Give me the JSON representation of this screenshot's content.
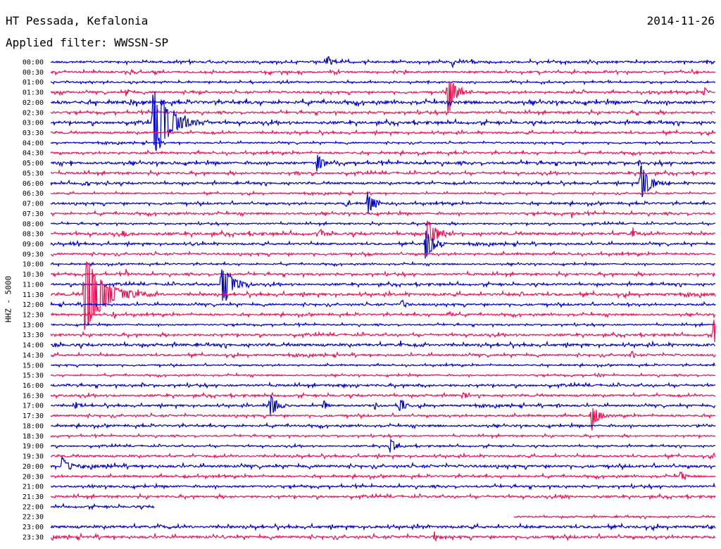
{
  "header": {
    "station": "HT Pessada, Kefalonia",
    "date": "2014-11-26",
    "filter": "Applied filter: WWSSN-SP"
  },
  "colors": {
    "even": "#0000cc",
    "odd": "#ee1155"
  },
  "chart_data": {
    "type": "line",
    "ylabel": "HHZ - 5000",
    "x_range_minutes": [
      0,
      30
    ],
    "rows": [
      {
        "label": "00:00",
        "noise": 2,
        "events": [
          {
            "at": 12.5,
            "amp": 10,
            "dur": 0.3
          },
          {
            "at": 18.1,
            "amp": 7,
            "dur": 0.2
          },
          {
            "at": 19.0,
            "amp": 5,
            "dur": 0.2
          },
          {
            "at": 24.2,
            "amp": 3,
            "dur": 0.2
          }
        ]
      },
      {
        "label": "00:30",
        "noise": 2,
        "events": [
          {
            "at": 15.5,
            "amp": 3,
            "dur": 0.2
          },
          {
            "at": 25.0,
            "amp": 3,
            "dur": 0.2
          }
        ]
      },
      {
        "label": "01:00",
        "noise": 1.5,
        "events": []
      },
      {
        "label": "01:30",
        "noise": 2,
        "events": [
          {
            "at": 3.4,
            "amp": 8,
            "dur": 0.2
          },
          {
            "at": 6.4,
            "amp": 3,
            "dur": 0.2
          },
          {
            "at": 17.9,
            "amp": 40,
            "dur": 0.5
          },
          {
            "at": 24.0,
            "amp": 6,
            "dur": 0.2
          },
          {
            "at": 27.0,
            "amp": 3,
            "dur": 0.2
          },
          {
            "at": 29.5,
            "amp": 10,
            "dur": 0.2
          }
        ]
      },
      {
        "label": "02:00",
        "noise": 3,
        "events": [
          {
            "at": 3.5,
            "amp": 6,
            "dur": 0.3
          }
        ]
      },
      {
        "label": "02:30",
        "noise": 2,
        "events": [
          {
            "at": 26.5,
            "amp": 4,
            "dur": 0.2
          }
        ]
      },
      {
        "label": "03:00",
        "noise": 2.5,
        "events": [
          {
            "at": 4.6,
            "amp": 60,
            "dur": 1.2
          }
        ]
      },
      {
        "label": "03:30",
        "noise": 2,
        "events": []
      },
      {
        "label": "04:00",
        "noise": 1.5,
        "events": []
      },
      {
        "label": "04:30",
        "noise": 2,
        "events": [
          {
            "at": 16.7,
            "amp": 3,
            "dur": 0.2
          }
        ]
      },
      {
        "label": "05:00",
        "noise": 2.5,
        "events": [
          {
            "at": 0.9,
            "amp": 6,
            "dur": 0.2
          },
          {
            "at": 12.0,
            "amp": 14,
            "dur": 0.5
          },
          {
            "at": 26.5,
            "amp": 4,
            "dur": 0.3
          }
        ]
      },
      {
        "label": "05:30",
        "noise": 2,
        "events": [
          {
            "at": 11.0,
            "amp": 4,
            "dur": 0.3
          }
        ]
      },
      {
        "label": "06:00",
        "noise": 2,
        "events": [
          {
            "at": 1.4,
            "amp": 4,
            "dur": 0.3
          },
          {
            "at": 2.5,
            "amp": 4,
            "dur": 0.2
          },
          {
            "at": 16.5,
            "amp": 3,
            "dur": 0.2
          },
          {
            "at": 26.6,
            "amp": 30,
            "dur": 0.7
          }
        ]
      },
      {
        "label": "06:30",
        "noise": 1.5,
        "events": []
      },
      {
        "label": "07:00",
        "noise": 2,
        "events": [
          {
            "at": 13.3,
            "amp": 6,
            "dur": 0.2
          },
          {
            "at": 14.3,
            "amp": 18,
            "dur": 0.5
          }
        ]
      },
      {
        "label": "07:30",
        "noise": 2,
        "events": [
          {
            "at": 23.5,
            "amp": 4,
            "dur": 0.2
          }
        ]
      },
      {
        "label": "08:00",
        "noise": 1.5,
        "events": []
      },
      {
        "label": "08:30",
        "noise": 2.5,
        "events": [
          {
            "at": 3.3,
            "amp": 8,
            "dur": 0.3
          },
          {
            "at": 12.1,
            "amp": 10,
            "dur": 0.3
          },
          {
            "at": 17.0,
            "amp": 20,
            "dur": 0.8
          },
          {
            "at": 26.2,
            "amp": 8,
            "dur": 0.3
          }
        ]
      },
      {
        "label": "09:00",
        "noise": 2,
        "events": [
          {
            "at": 1.0,
            "amp": 4,
            "dur": 0.2
          },
          {
            "at": 6.4,
            "amp": 5,
            "dur": 0.3
          },
          {
            "at": 16.9,
            "amp": 25,
            "dur": 0.6
          }
        ]
      },
      {
        "label": "09:30",
        "noise": 2,
        "events": [
          {
            "at": 14.3,
            "amp": 3,
            "dur": 0.3
          }
        ]
      },
      {
        "label": "10:00",
        "noise": 1.5,
        "events": []
      },
      {
        "label": "10:30",
        "noise": 2,
        "events": [
          {
            "at": 3.4,
            "amp": 5,
            "dur": 0.2
          }
        ]
      },
      {
        "label": "11:00",
        "noise": 2,
        "events": [
          {
            "at": 7.7,
            "amp": 40,
            "dur": 0.7
          }
        ]
      },
      {
        "label": "11:30",
        "noise": 2.5,
        "events": [
          {
            "at": 1.5,
            "amp": 60,
            "dur": 1.5
          },
          {
            "at": 21.2,
            "amp": 6,
            "dur": 0.2
          }
        ]
      },
      {
        "label": "12:00",
        "noise": 2,
        "events": [
          {
            "at": 15.8,
            "amp": 9,
            "dur": 0.3
          },
          {
            "at": 26.0,
            "amp": 4,
            "dur": 0.2
          }
        ]
      },
      {
        "label": "12:30",
        "noise": 2,
        "events": [
          {
            "at": 2.8,
            "amp": 6,
            "dur": 0.2
          },
          {
            "at": 18.0,
            "amp": 6,
            "dur": 0.2
          }
        ]
      },
      {
        "label": "13:00",
        "noise": 1.5,
        "events": []
      },
      {
        "label": "13:30",
        "noise": 2,
        "events": [
          {
            "at": 29.9,
            "amp": 25,
            "dur": 0.4
          }
        ]
      },
      {
        "label": "14:00",
        "noise": 2.5,
        "events": [
          {
            "at": 0.1,
            "amp": 6,
            "dur": 0.2
          },
          {
            "at": 15.7,
            "amp": 5,
            "dur": 0.2
          },
          {
            "at": 16.7,
            "amp": 3,
            "dur": 0.2
          }
        ]
      },
      {
        "label": "14:30",
        "noise": 2,
        "events": [
          {
            "at": 26.2,
            "amp": 8,
            "dur": 0.2
          }
        ]
      },
      {
        "label": "15:00",
        "noise": 1.5,
        "events": []
      },
      {
        "label": "15:30",
        "noise": 1.5,
        "events": [
          {
            "at": 24.7,
            "amp": 4,
            "dur": 0.2
          }
        ]
      },
      {
        "label": "16:00",
        "noise": 2,
        "events": [
          {
            "at": 0.7,
            "amp": 3,
            "dur": 0.2
          },
          {
            "at": 4.1,
            "amp": 5,
            "dur": 0.2
          },
          {
            "at": 13.2,
            "amp": 4,
            "dur": 0.2
          },
          {
            "at": 16.6,
            "amp": 3,
            "dur": 0.2
          }
        ]
      },
      {
        "label": "16:30",
        "noise": 2,
        "events": [
          {
            "at": 18.6,
            "amp": 8,
            "dur": 0.3
          }
        ]
      },
      {
        "label": "17:00",
        "noise": 2,
        "events": [
          {
            "at": 1.1,
            "amp": 8,
            "dur": 0.3
          },
          {
            "at": 9.9,
            "amp": 18,
            "dur": 0.5
          },
          {
            "at": 12.3,
            "amp": 10,
            "dur": 0.3
          },
          {
            "at": 14.6,
            "amp": 8,
            "dur": 0.2
          },
          {
            "at": 15.7,
            "amp": 14,
            "dur": 0.4
          },
          {
            "at": 22.9,
            "amp": 4,
            "dur": 0.2
          }
        ]
      },
      {
        "label": "17:30",
        "noise": 2,
        "events": [
          {
            "at": 24.4,
            "amp": 22,
            "dur": 0.5
          }
        ]
      },
      {
        "label": "18:00",
        "noise": 2,
        "events": [
          {
            "at": 29.2,
            "amp": 3,
            "dur": 0.2
          }
        ]
      },
      {
        "label": "18:30",
        "noise": 1.5,
        "events": []
      },
      {
        "label": "19:00",
        "noise": 1.5,
        "events": [
          {
            "at": 15.3,
            "amp": 14,
            "dur": 0.4
          }
        ]
      },
      {
        "label": "19:30",
        "noise": 2,
        "events": [
          {
            "at": 29.9,
            "amp": 6,
            "dur": 0.2
          }
        ]
      },
      {
        "label": "20:00",
        "noise": 2.5,
        "events": [
          {
            "at": 0.5,
            "amp": 16,
            "dur": 0.5
          },
          {
            "at": 2.7,
            "amp": 3,
            "dur": 0.2
          }
        ]
      },
      {
        "label": "20:30",
        "noise": 2,
        "events": [
          {
            "at": 6.0,
            "amp": 3,
            "dur": 0.2
          },
          {
            "at": 28.4,
            "amp": 8,
            "dur": 0.3
          }
        ]
      },
      {
        "label": "21:00",
        "noise": 2,
        "events": [
          {
            "at": 1.8,
            "amp": 3,
            "dur": 0.2
          }
        ]
      },
      {
        "label": "21:30",
        "noise": 2,
        "events": [
          {
            "at": 23.2,
            "amp": 4,
            "dur": 0.2
          }
        ]
      },
      {
        "label": "22:00",
        "noise": 2,
        "end": 4.7,
        "events": []
      },
      {
        "label": "22:30",
        "noise": 1.5,
        "start": 20.9,
        "events": []
      },
      {
        "label": "23:00",
        "noise": 2.5,
        "events": [
          {
            "at": 4.9,
            "amp": 3,
            "dur": 0.2
          },
          {
            "at": 16.8,
            "amp": 3,
            "dur": 0.2
          },
          {
            "at": 29.6,
            "amp": 3,
            "dur": 0.2
          }
        ]
      },
      {
        "label": "23:30",
        "noise": 2.5,
        "events": [
          {
            "at": 7.6,
            "amp": 4,
            "dur": 0.2
          },
          {
            "at": 17.3,
            "amp": 8,
            "dur": 0.3
          }
        ]
      }
    ]
  }
}
